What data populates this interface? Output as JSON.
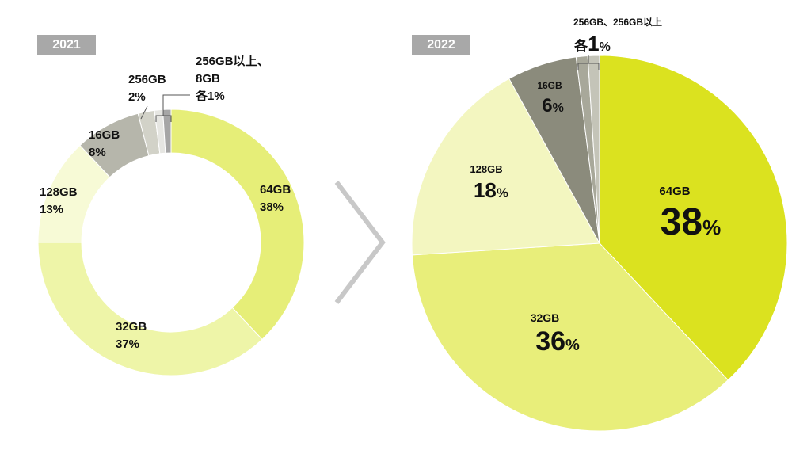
{
  "chart_data": [
    {
      "type": "pie",
      "variant": "donut",
      "title": "2021",
      "slices": [
        {
          "label": "64GB",
          "value": 38,
          "display": "38%",
          "color": "#e6ee78"
        },
        {
          "label": "32GB",
          "value": 37,
          "display": "37%",
          "color": "#eef5a8"
        },
        {
          "label": "128GB",
          "value": 13,
          "display": "13%",
          "color": "#f7fad6"
        },
        {
          "label": "16GB",
          "value": 8,
          "display": "8%",
          "color": "#b6b6ab"
        },
        {
          "label": "256GB",
          "value": 2,
          "display": "2%",
          "color": "#d2d2c8"
        },
        {
          "label": "8GB",
          "value": 1,
          "display": "1%",
          "color": "#e6e6e2"
        },
        {
          "label": "256GB以上",
          "value": 1,
          "display": "1%",
          "color": "#a6a6a6"
        }
      ],
      "annotations": {
        "label_64": "64GB",
        "pct_64": "38%",
        "label_32": "32GB",
        "pct_32": "37%",
        "label_128": "128GB",
        "pct_128": "13%",
        "label_16": "16GB",
        "pct_16": "8%",
        "label_256": "256GB",
        "pct_256": "2%",
        "small_line1": "256GB以上、",
        "small_line2": "8GB",
        "small_line3": "各1%"
      }
    },
    {
      "type": "pie",
      "title": "2022",
      "slices": [
        {
          "label": "64GB",
          "value": 38,
          "display": "38%",
          "color": "#dbe21f"
        },
        {
          "label": "32GB",
          "value": 36,
          "display": "36%",
          "color": "#e8ee7a"
        },
        {
          "label": "128GB",
          "value": 18,
          "display": "18%",
          "color": "#f3f6c0"
        },
        {
          "label": "16GB",
          "value": 6,
          "display": "6%",
          "color": "#8b8b7c"
        },
        {
          "label": "256GB",
          "value": 1,
          "display": "1%",
          "color": "#a8a89a"
        },
        {
          "label": "256GB以上",
          "value": 1,
          "display": "1%",
          "color": "#c4c4b8"
        }
      ],
      "annotations": {
        "label_64": "64GB",
        "num_64": "38",
        "unit_64": "%",
        "label_32": "32GB",
        "num_32": "36",
        "unit_32": "%",
        "label_128": "128GB",
        "num_128": "18",
        "unit_128": "%",
        "label_16": "16GB",
        "num_16": "6",
        "unit_16": "%",
        "small_label": "256GB、256GB以上",
        "small_prefix": "各",
        "small_num": "1",
        "small_unit": "%"
      }
    }
  ],
  "colors": {
    "arrow": "#c8c8c8",
    "tag_bg": "#a8a8a8",
    "tag_text": "#ffffff",
    "separator": "#ffffff",
    "bracket": "#555555"
  }
}
